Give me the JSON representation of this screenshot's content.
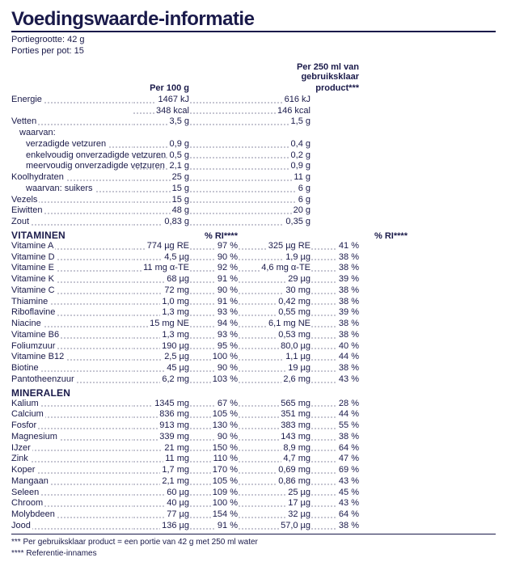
{
  "title": "Voedingswaarde-informatie",
  "serving_size": "Portiegrootte: 42 g",
  "servings_per": "Porties per pot: 15",
  "col_per100": "Per 100 g",
  "col_per250_l1": "Per 250 ml van",
  "col_per250_l2": "gebruiksklaar",
  "col_per250_l3": "product***",
  "col_ri": "% RI****",
  "energy_label": "Energie",
  "energy_kj_100": "1467 kJ",
  "energy_kj_250": "616 kJ",
  "energy_kcal_100": "348 kcal",
  "energy_kcal_250": "146 kcal",
  "fat_label": "Vetten",
  "fat_100": "3,5 g",
  "fat_250": "1,5 g",
  "of_which": "waarvan:",
  "satfat_label": "verzadigde vetzuren",
  "satfat_100": "0,9 g",
  "satfat_250": "0,4 g",
  "mono_label": "enkelvoudig onverzadigde vetzuren",
  "mono_100": "0,5 g",
  "mono_250": "0,2 g",
  "poly_label": "meervoudig onverzadigde vetzuren",
  "poly_100": "2,1 g",
  "poly_250": "0,9 g",
  "carb_label": "Koolhydraten",
  "carb_100": "25 g",
  "carb_250": "11 g",
  "sugar_label": "waarvan: suikers",
  "sugar_100": "15 g",
  "sugar_250": "6 g",
  "fiber_label": "Vezels",
  "fiber_100": "15 g",
  "fiber_250": "6 g",
  "protein_label": "Eiwitten",
  "protein_100": "48 g",
  "protein_250": "20 g",
  "salt_label": "Zout",
  "salt_100": "0,83 g",
  "salt_250": "0,35 g",
  "vit_section": "VITAMINEN",
  "min_section": "MINERALEN",
  "vit": [
    {
      "l": "Vitamine A",
      "a": "774 µg RE",
      "ar": "97 %",
      "b": "325 µg RE",
      "br": "41 %"
    },
    {
      "l": "Vitamine D",
      "a": "4,5 µg",
      "ar": "90 %",
      "b": "1,9 µg",
      "br": "38 %"
    },
    {
      "l": "Vitamine E",
      "a": "11 mg α-TE",
      "ar": "92 %",
      "b": "4,6 mg α-TE",
      "br": "38 %"
    },
    {
      "l": "Vitamine K",
      "a": "68 µg",
      "ar": "91 %",
      "b": "29 µg",
      "br": "39 %"
    },
    {
      "l": "Vitamine C",
      "a": "72 mg",
      "ar": "90 %",
      "b": "30 mg",
      "br": "38 %"
    },
    {
      "l": "Thiamine",
      "a": "1,0 mg",
      "ar": "91 %",
      "b": "0,42 mg",
      "br": "38 %"
    },
    {
      "l": "Riboflavine",
      "a": "1,3 mg",
      "ar": "93 %",
      "b": "0,55 mg",
      "br": "39 %"
    },
    {
      "l": "Niacine",
      "a": "15 mg NE",
      "ar": "94 %",
      "b": "6,1 mg NE",
      "br": "38 %"
    },
    {
      "l": "Vitamine B6",
      "a": "1,3 mg",
      "ar": "93 %",
      "b": "0,53 mg",
      "br": "38 %"
    },
    {
      "l": "Foliumzuur",
      "a": "190 µg",
      "ar": "95 %",
      "b": "80,0 µg",
      "br": "40 %"
    },
    {
      "l": "Vitamine B12",
      "a": "2,5 µg",
      "ar": "100 %",
      "b": "1,1 µg",
      "br": "44 %"
    },
    {
      "l": "Biotine",
      "a": "45 µg",
      "ar": "90 %",
      "b": "19 µg",
      "br": "38 %"
    },
    {
      "l": "Pantotheenzuur",
      "a": "6,2 mg",
      "ar": "103 %",
      "b": "2,6 mg",
      "br": "43 %"
    }
  ],
  "min": [
    {
      "l": "Kalium",
      "a": "1345 mg",
      "ar": "67 %",
      "b": "565 mg",
      "br": "28 %"
    },
    {
      "l": "Calcium",
      "a": "836 mg",
      "ar": "105 %",
      "b": "351 mg",
      "br": "44 %"
    },
    {
      "l": "Fosfor",
      "a": "913 mg",
      "ar": "130 %",
      "b": "383 mg",
      "br": "55 %"
    },
    {
      "l": "Magnesium",
      "a": "339 mg",
      "ar": "90 %",
      "b": "143 mg",
      "br": "38 %"
    },
    {
      "l": "IJzer",
      "a": "21 mg",
      "ar": "150 %",
      "b": "8,9 mg",
      "br": "64 %"
    },
    {
      "l": "Zink",
      "a": "11 mg",
      "ar": "110 %",
      "b": "4,7 mg",
      "br": "47 %"
    },
    {
      "l": "Koper",
      "a": "1,7 mg",
      "ar": "170 %",
      "b": "0,69 mg",
      "br": "69 %"
    },
    {
      "l": "Mangaan",
      "a": "2,1 mg",
      "ar": "105 %",
      "b": "0,86 mg",
      "br": "43 %"
    },
    {
      "l": "Seleen",
      "a": "60 µg",
      "ar": "109 %",
      "b": "25 µg",
      "br": "45 %"
    },
    {
      "l": "Chroom",
      "a": "40 µg",
      "ar": "100 %",
      "b": "17 µg",
      "br": "43 %"
    },
    {
      "l": "Molybdeen",
      "a": "77 µg",
      "ar": "154 %",
      "b": "32 µg",
      "br": "64 %"
    },
    {
      "l": "Jood",
      "a": "136 µg",
      "ar": "91 %",
      "b": "57,0 µg",
      "br": "38 %"
    }
  ],
  "footnote1": "*** Per gebruiksklaar product = een portie van 42 g met 250 ml water",
  "footnote2": "**** Referentie-innames"
}
